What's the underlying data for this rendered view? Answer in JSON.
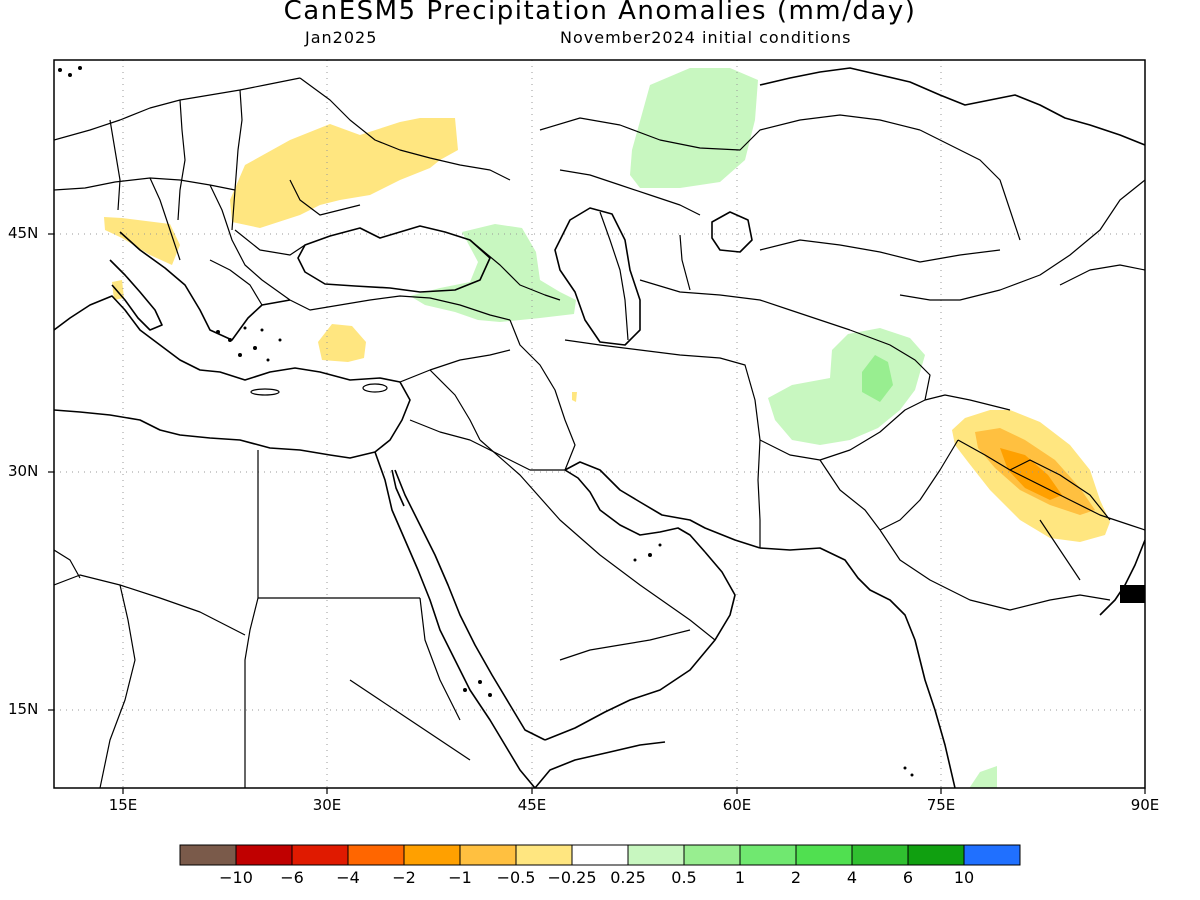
{
  "title": "CanESM5 Precipitation Anomalies (mm/day)",
  "subtitle_left": "Jan2025",
  "subtitle_right": "November2024 initial conditions",
  "map": {
    "lon_range": [
      10,
      90
    ],
    "lat_range": [
      10,
      56
    ],
    "lat_ticks": [
      "45N",
      "30N",
      "15N"
    ],
    "lon_ticks": [
      "15E",
      "30E",
      "45E",
      "60E",
      "75E",
      "90E"
    ],
    "grid": "dotted"
  },
  "colorbar": {
    "labels": [
      "−10",
      "−6",
      "−4",
      "−2",
      "−1",
      "−0.5",
      "−0.25",
      "0.25",
      "0.5",
      "1",
      "2",
      "4",
      "6",
      "10"
    ],
    "colors": [
      "#7a5a4a",
      "#c00000",
      "#e01a00",
      "#ff6600",
      "#ffa000",
      "#ffc040",
      "#ffe680",
      "#ffffff",
      "#c8f7c0",
      "#98ee90",
      "#70e870",
      "#50e050",
      "#30c030",
      "#10a010",
      "#2070ff"
    ]
  },
  "anomaly_colors": {
    "dry_light": "#ffe680",
    "dry_moderate": "#ffc040",
    "dry_strong": "#ffa000",
    "wet_light": "#c8f7c0",
    "wet_moderate": "#98ee90"
  }
}
